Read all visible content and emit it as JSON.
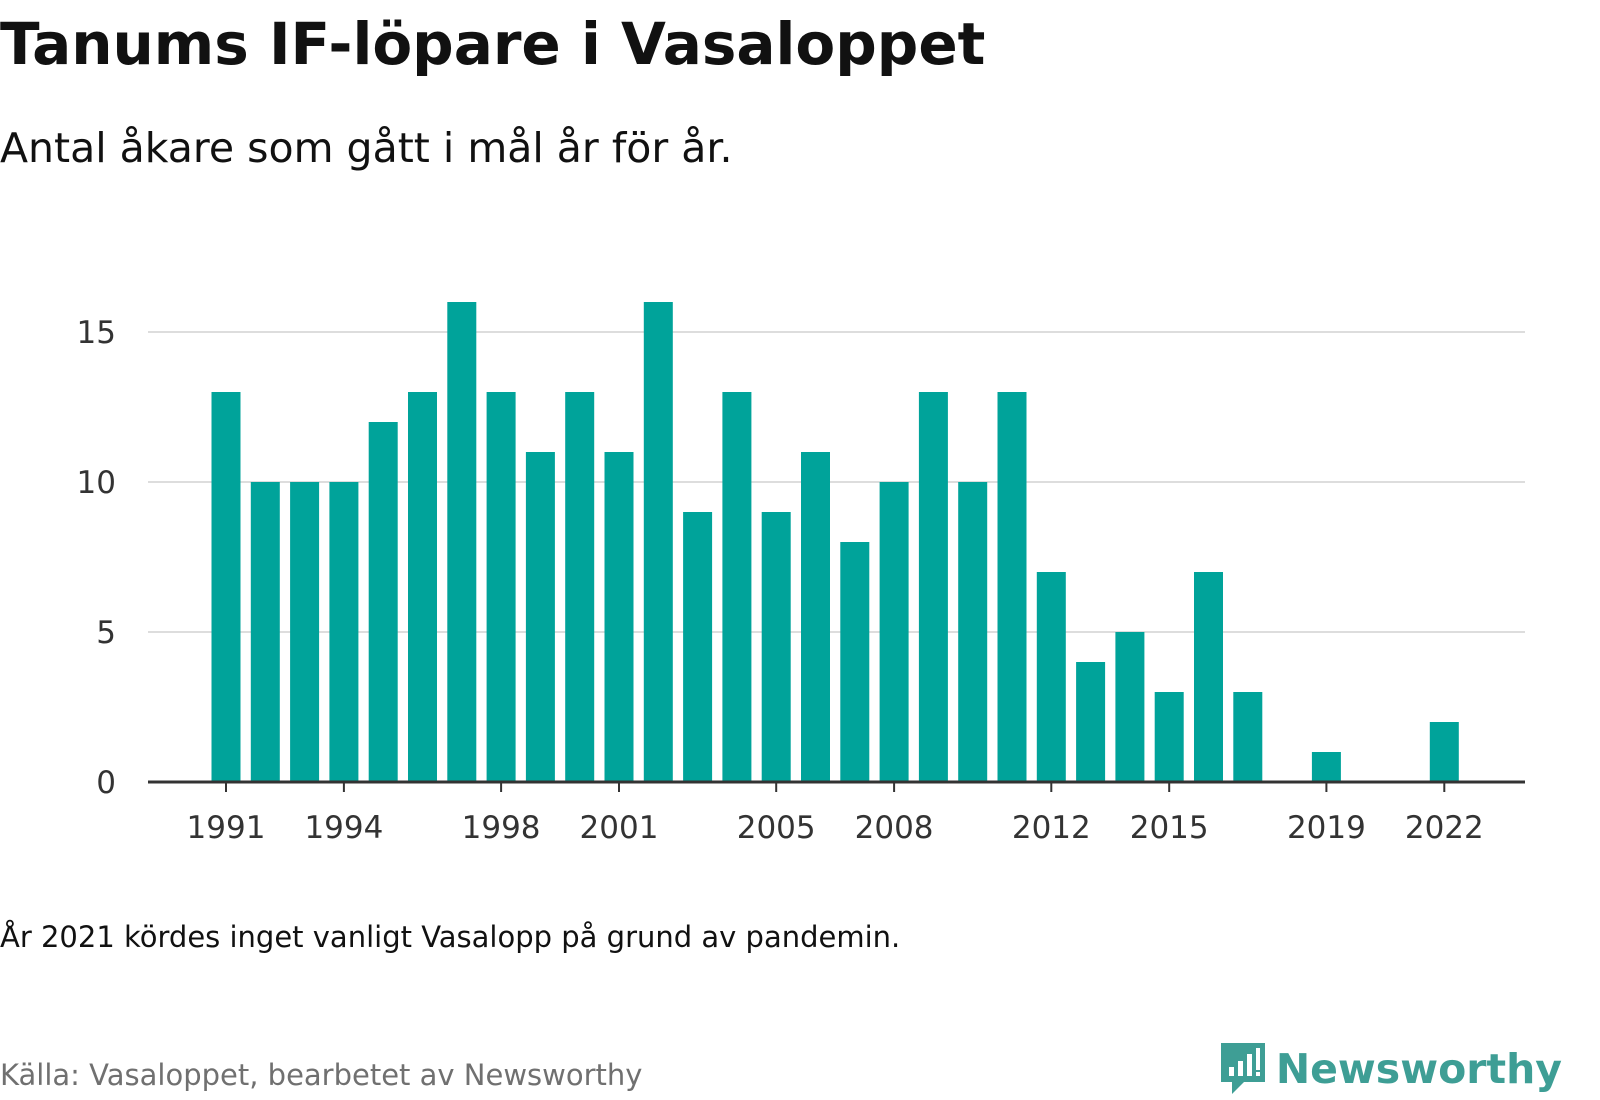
{
  "title": "Tanums IF-löpare i Vasaloppet",
  "subtitle": "Antal åkare som gått i mål år för år.",
  "note": "År 2021 kördes inget vanligt Vasalopp på grund av pandemin.",
  "source": "Källa: Vasaloppet, bearbetet av Newsworthy",
  "brand": "Newsworthy",
  "colors": {
    "bar": "#00a39a",
    "grid": "#dddddd",
    "axis": "#333333",
    "brand": "#3e9e95"
  },
  "chart_data": {
    "type": "bar",
    "title": "Tanums IF-löpare i Vasaloppet",
    "subtitle": "Antal åkare som gått i mål år för år.",
    "xlabel": "",
    "ylabel": "",
    "ylim": [
      0,
      17
    ],
    "yticks": [
      0,
      5,
      10,
      15
    ],
    "xtick_labels": [
      "1991",
      "1994",
      "1998",
      "2001",
      "2005",
      "2008",
      "2012",
      "2015",
      "2019",
      "2022"
    ],
    "grid": true,
    "legend": "none",
    "categories": [
      "1991",
      "1992",
      "1993",
      "1994",
      "1995",
      "1996",
      "1997",
      "1998",
      "1999",
      "2000",
      "2001",
      "2002",
      "2003",
      "2004",
      "2005",
      "2006",
      "2007",
      "2008",
      "2009",
      "2010",
      "2011",
      "2012",
      "2013",
      "2014",
      "2015",
      "2016",
      "2017",
      "2018",
      "2019",
      "2020",
      "2021",
      "2022"
    ],
    "values": [
      13,
      10,
      10,
      10,
      12,
      13,
      16,
      13,
      11,
      13,
      11,
      16,
      9,
      13,
      9,
      11,
      8,
      10,
      13,
      10,
      13,
      7,
      4,
      5,
      3,
      7,
      3,
      0,
      1,
      0,
      0,
      2
    ]
  }
}
